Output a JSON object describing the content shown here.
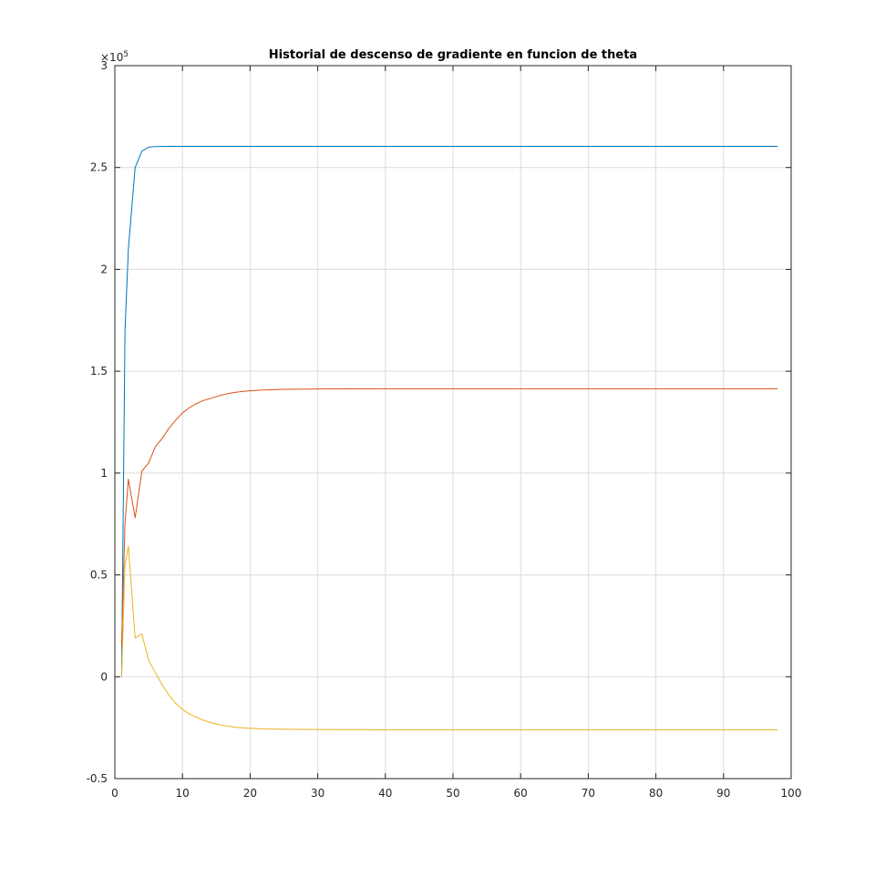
{
  "chart_data": {
    "type": "line",
    "title": "Historial de descenso de gradiente en funcion de theta",
    "xlabel": "",
    "ylabel": "",
    "xlim": [
      0,
      100
    ],
    "ylim": [
      -50000,
      300000
    ],
    "y_exponent_label": "×10",
    "y_exponent": "5",
    "xticks": [
      0,
      10,
      20,
      30,
      40,
      50,
      60,
      70,
      80,
      90,
      100
    ],
    "xtick_labels": [
      "0",
      "10",
      "20",
      "30",
      "40",
      "50",
      "60",
      "70",
      "80",
      "90",
      "100"
    ],
    "yticks": [
      -50000,
      0,
      50000,
      100000,
      150000,
      200000,
      250000,
      300000
    ],
    "ytick_labels": [
      "-0.5",
      "0",
      "0.5",
      "1",
      "1.5",
      "2",
      "2.5",
      "3"
    ],
    "grid": true,
    "series": [
      {
        "color": "#0072BD",
        "x": [
          1,
          1.5,
          2,
          3,
          4,
          5,
          6,
          8,
          10,
          20,
          30,
          50,
          70,
          98
        ],
        "y": [
          0,
          170000,
          210000,
          250000,
          258000,
          260000,
          260300,
          260400,
          260400,
          260400,
          260400,
          260400,
          260400,
          260400
        ]
      },
      {
        "color": "#D95319",
        "x": [
          1,
          1.5,
          2,
          3,
          4,
          5,
          6,
          7,
          8,
          9,
          10,
          11,
          12,
          13,
          14,
          15,
          16,
          17,
          18,
          19,
          20,
          22,
          25,
          30,
          40,
          60,
          80,
          98
        ],
        "y": [
          15000,
          75000,
          97000,
          78000,
          101000,
          105000,
          113000,
          117000,
          122000,
          126000,
          129500,
          132000,
          134000,
          135500,
          136500,
          137500,
          138500,
          139200,
          139700,
          140100,
          140400,
          140800,
          141100,
          141300,
          141400,
          141400,
          141400,
          141400
        ]
      },
      {
        "color": "#EDB120",
        "x": [
          1,
          1.5,
          2,
          3,
          4,
          5,
          6,
          7,
          8,
          9,
          10,
          11,
          12,
          13,
          14,
          15,
          16,
          17,
          18,
          19,
          20,
          22,
          25,
          30,
          40,
          60,
          80,
          98
        ],
        "y": [
          0,
          55000,
          64000,
          19000,
          21000,
          8000,
          2000,
          -4000,
          -9000,
          -13000,
          -16000,
          -18200,
          -19800,
          -21200,
          -22300,
          -23200,
          -23900,
          -24400,
          -24800,
          -25100,
          -25300,
          -25600,
          -25800,
          -25900,
          -26000,
          -26000,
          -26000,
          -26000
        ]
      }
    ]
  }
}
